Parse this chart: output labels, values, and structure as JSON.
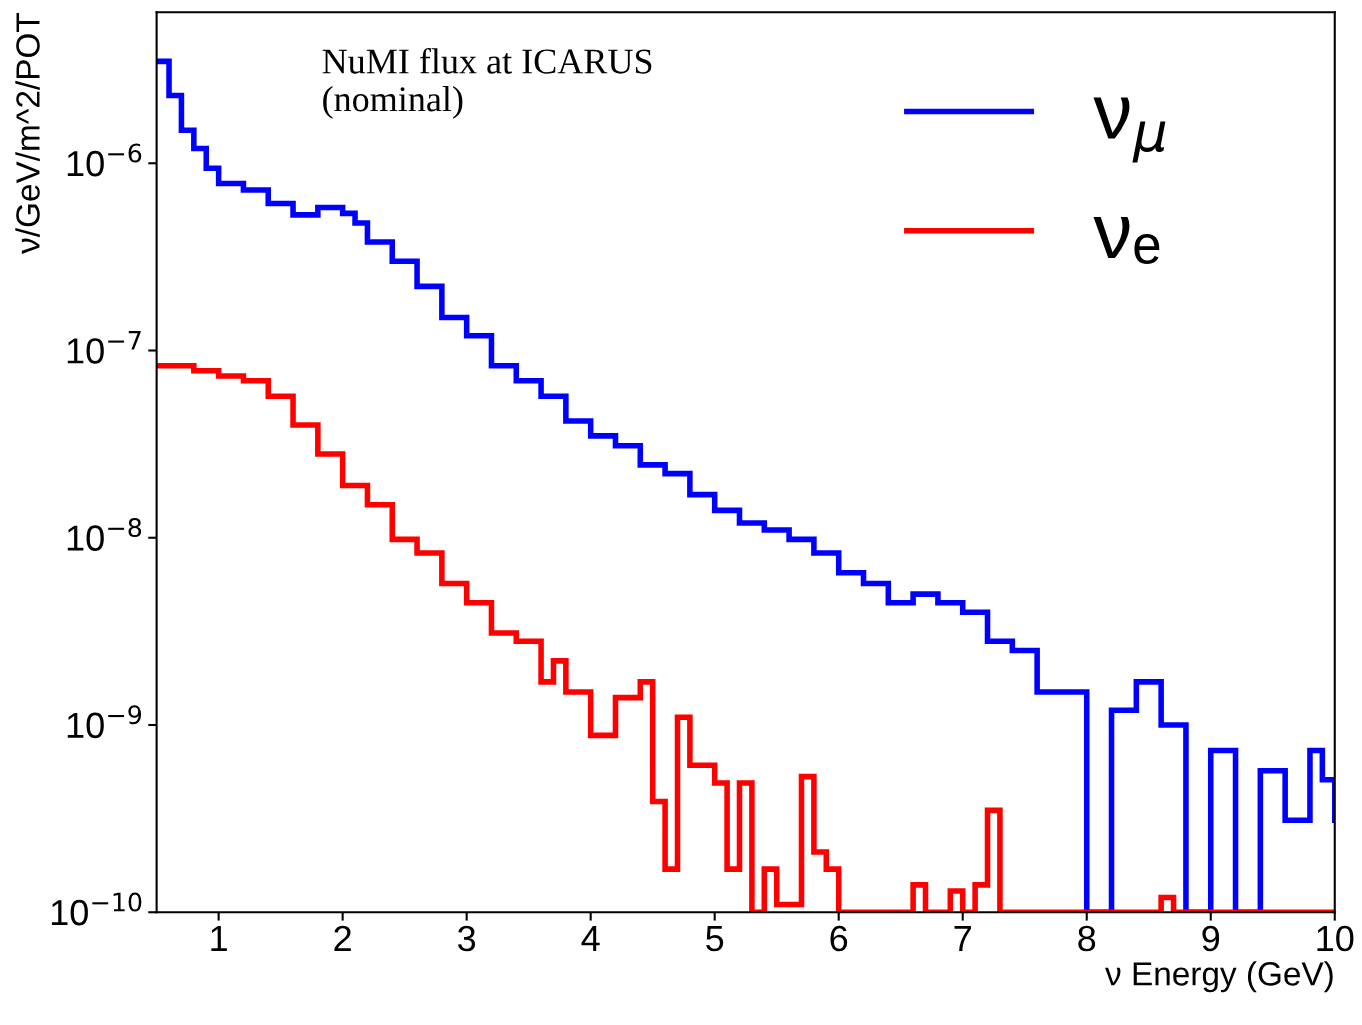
{
  "chart_data": {
    "type": "step",
    "xlabel": "ν Energy (GeV)",
    "ylabel": "ν/GeV/m^2/POT",
    "log": "y",
    "grid": false,
    "legend": "top right",
    "annotations": [
      "NuMI flux at ICARUS\n(nominal)"
    ],
    "xlim": [
      0.5,
      10
    ],
    "xticks": [
      1,
      2,
      3,
      4,
      5,
      6,
      7,
      8,
      9,
      10
    ],
    "ylim": [
      1e-10,
      6.4e-06
    ],
    "yticks": [
      {
        "value": 1e-10,
        "label": "10$^{−10}$"
      },
      {
        "value": 1e-09,
        "label": "10$^{−9}$"
      },
      {
        "value": 1e-08,
        "label": "10$^{−8}$"
      },
      {
        "value": 1e-07,
        "label": "10$^{−7}$"
      },
      {
        "value": 1e-06,
        "label": "10$^{−6}$"
      }
    ],
    "series": [
      {
        "name": "ν$_{μ}$",
        "color": "#0000ff",
        "x": [
          0.5,
          0.6,
          0.7,
          0.8,
          0.9,
          1.0,
          1.2,
          1.4,
          1.6,
          1.8,
          2.0,
          2.1,
          2.2,
          2.4,
          2.6,
          2.8,
          3.0,
          3.2,
          3.4,
          3.6,
          3.8,
          4.0,
          4.2,
          4.4,
          4.6,
          4.8,
          5.0,
          5.2,
          5.4,
          5.6,
          5.8,
          6.0,
          6.2,
          6.4,
          6.6,
          6.8,
          7.0,
          7.2,
          7.4,
          7.6,
          7.8,
          8.0,
          8.2,
          8.4,
          8.6,
          8.8,
          9.0,
          9.2,
          9.4,
          9.6,
          9.8,
          9.9,
          10.0
        ],
        "values": [
          3.5e-06,
          2.3e-06,
          1.5e-06,
          1.2e-06,
          9.4e-07,
          7.8e-07,
          7.2e-07,
          6.1e-07,
          5.3e-07,
          5.8e-07,
          5.4e-07,
          4.8e-07,
          3.8e-07,
          3e-07,
          2.2e-07,
          1.5e-07,
          1.2e-07,
          8.3e-08,
          6.9e-08,
          5.7e-08,
          4.2e-08,
          3.5e-08,
          3.1e-08,
          2.45e-08,
          2.2e-08,
          1.7e-08,
          1.4e-08,
          1.2e-08,
          1.1e-08,
          9.8e-09,
          8.3e-09,
          6.5e-09,
          5.7e-09,
          4.5e-09,
          5e-09,
          4.5e-09,
          4e-09,
          2.8e-09,
          2.5e-09,
          1.5e-09,
          1.5e-09,
          1e-10,
          1.2e-09,
          1.7e-09,
          1e-09,
          1e-10,
          7.3e-10,
          1e-10,
          5.7e-10,
          3.1e-10,
          7.3e-10,
          5.1e-10,
          3.1e-10
        ]
      },
      {
        "name": "νₑ",
        "color": "#ff0000",
        "x": [
          0.5,
          0.8,
          1.0,
          1.2,
          1.4,
          1.6,
          1.8,
          2.0,
          2.2,
          2.4,
          2.6,
          2.8,
          3.0,
          3.2,
          3.4,
          3.6,
          3.7,
          3.8,
          4.0,
          4.2,
          4.4,
          4.5,
          4.6,
          4.7,
          4.8,
          5.0,
          5.1,
          5.2,
          5.3,
          5.4,
          5.5,
          5.7,
          5.8,
          5.9,
          6.0,
          6.6,
          6.7,
          6.9,
          7.0,
          7.1,
          7.2,
          7.3,
          8.6,
          8.7,
          10.0
        ],
        "values": [
          8.3e-08,
          7.8e-08,
          7.3e-08,
          6.9e-08,
          5.7e-08,
          4e-08,
          2.8e-08,
          1.9e-08,
          1.5e-08,
          9.8e-09,
          8.3e-09,
          5.7e-09,
          4.5e-09,
          3.1e-09,
          2.8e-09,
          1.7e-09,
          2.2e-09,
          1.5e-09,
          8.8e-10,
          1.4e-09,
          1.7e-09,
          3.9e-10,
          1.7e-10,
          1.1e-09,
          6.1e-10,
          4.9e-10,
          1.7e-10,
          4.9e-10,
          1e-10,
          1.7e-10,
          1.1e-10,
          5.3e-10,
          2.1e-10,
          1.7e-10,
          1e-10,
          1.4e-10,
          1e-10,
          1.3e-10,
          1e-10,
          1.4e-10,
          3.5e-10,
          1e-10,
          1.2e-10,
          1e-10,
          1e-10
        ]
      }
    ]
  }
}
